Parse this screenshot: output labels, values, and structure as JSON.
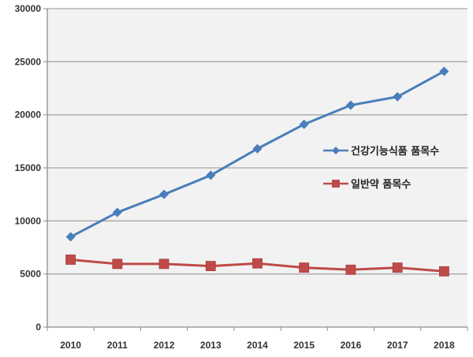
{
  "chart_data": {
    "type": "line",
    "title": "",
    "xlabel": "",
    "ylabel": "",
    "x": [
      "2010",
      "2011",
      "2012",
      "2013",
      "2014",
      "2015",
      "2016",
      "2017",
      "2018"
    ],
    "categories": [
      "2010",
      "2011",
      "2012",
      "2013",
      "2014",
      "2015",
      "2016",
      "2017",
      "2018"
    ],
    "series": [
      {
        "name": "건강기능식품 품목수",
        "color": "#4a7ebb",
        "marker": "diamond",
        "values": [
          8500,
          10800,
          12500,
          14300,
          16800,
          19100,
          20900,
          21700,
          24100
        ]
      },
      {
        "name": "일반약 품목수",
        "color": "#be4b48",
        "marker": "square",
        "values": [
          6350,
          5950,
          5950,
          5750,
          6000,
          5600,
          5400,
          5600,
          5250
        ]
      }
    ],
    "ylim": [
      0,
      30000
    ],
    "yticks": [
      0,
      5000,
      10000,
      15000,
      20000,
      25000,
      30000
    ],
    "ytick_labels": [
      "0",
      "5000",
      "10000",
      "15000",
      "20000",
      "25000",
      "30000"
    ],
    "grid": true,
    "legend_position": "right-inside",
    "plot_background": "#f2f2f2"
  },
  "legend": {
    "items": [
      {
        "label": "건강기능식품 품목수",
        "color": "#4a7ebb"
      },
      {
        "label": "일반약 품목수",
        "color": "#be4b48"
      }
    ]
  }
}
